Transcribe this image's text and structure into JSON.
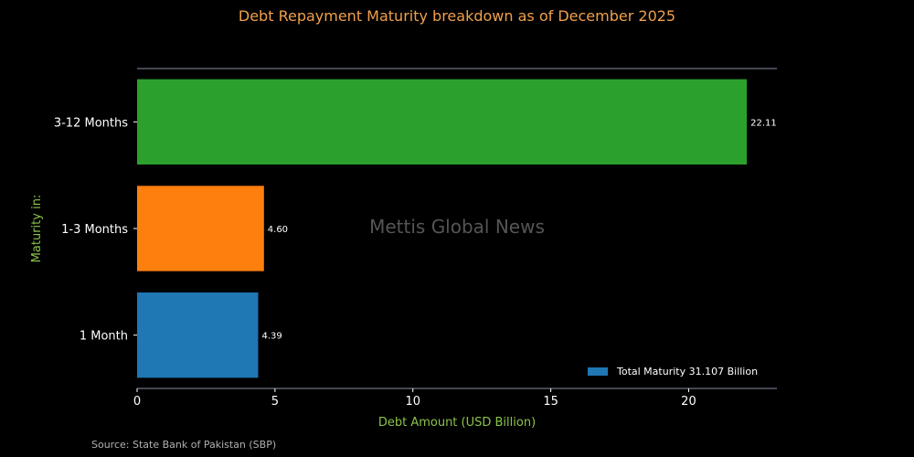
{
  "chart_data": {
    "type": "bar",
    "orientation": "horizontal",
    "title": "Debt Repayment Maturity breakdown as of December 2025",
    "xlabel": "Debt Amount (USD Billion)",
    "ylabel": "Maturity in:",
    "categories": [
      "1 Month",
      "1-3 Months",
      "3-12 Months"
    ],
    "values": [
      4.39,
      4.6,
      22.11
    ],
    "value_labels": [
      "4.39",
      "4.60",
      "22.11"
    ],
    "bar_colors": [
      "#1f77b4",
      "#ff7f0e",
      "#2ca02c"
    ],
    "xlim": [
      0,
      23.2
    ],
    "xticks": [
      0,
      5,
      10,
      15,
      20
    ],
    "legend": {
      "label": "Total Maturity 31.107 Billion",
      "color": "#1f77b4",
      "position": "lower-right"
    },
    "watermark": "Mettis Global News",
    "source": "Source: State Bank of Pakistan (SBP)"
  },
  "colors": {
    "background": "#000000",
    "title": "#f0a04b",
    "axis_label": "#8bc34a",
    "axis_line": "#8a8fa8",
    "text": "#ffffff"
  }
}
